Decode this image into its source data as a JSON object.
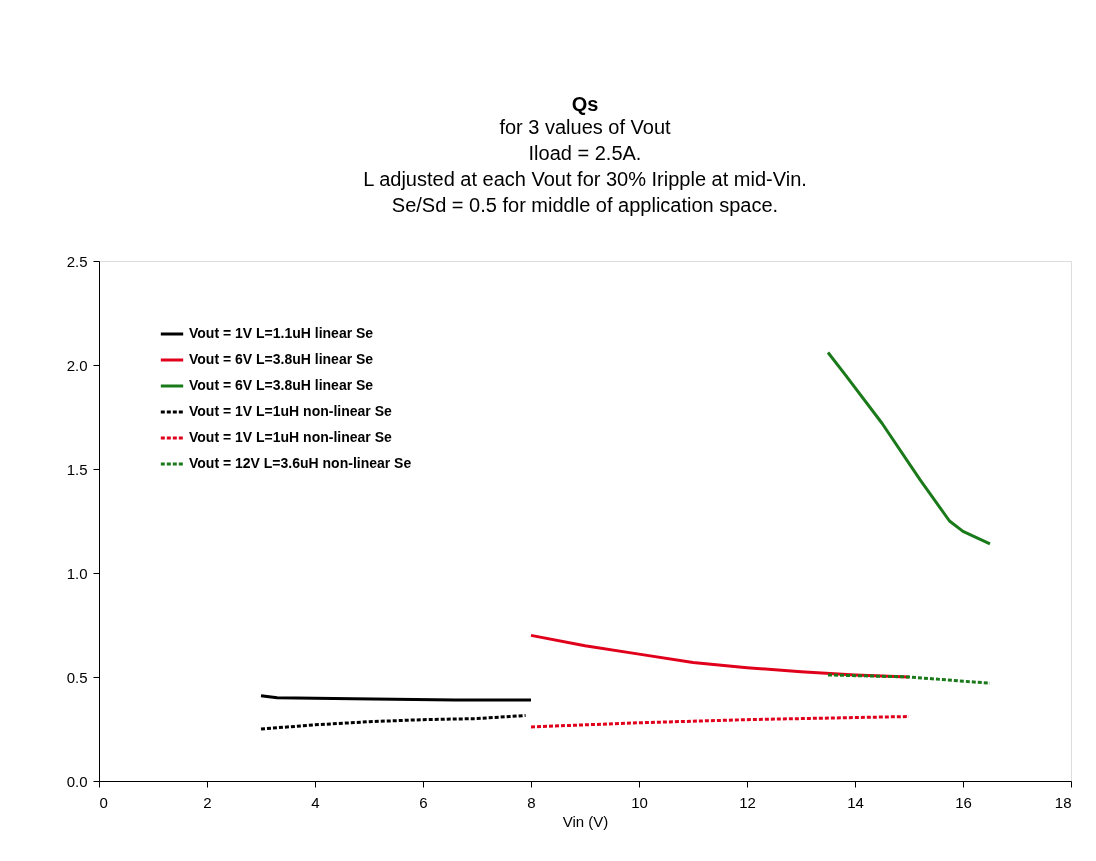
{
  "chart_data": {
    "type": "line",
    "title": "Qs",
    "subtitle": [
      "for 3 values of Vout",
      "Iload = 2.5A.",
      "L adjusted at each Vout for 30% Iripple at mid-Vin.",
      "Se/Sd = 0.5 for middle of application space."
    ],
    "xlabel": "Vin (V)",
    "xlim": [
      0,
      18
    ],
    "xticks": [
      0,
      2,
      4,
      6,
      8,
      10,
      12,
      14,
      16,
      18
    ],
    "ylim": [
      0,
      2.5
    ],
    "yticks": [
      {
        "value": 0,
        "label": "0.0"
      },
      {
        "value": 0.5,
        "label": "0.5"
      },
      {
        "value": 1,
        "label": "1.0"
      },
      {
        "value": 1.5,
        "label": "1.5"
      },
      {
        "value": 2,
        "label": "2.0"
      },
      {
        "value": 2.5,
        "label": "2.5"
      }
    ],
    "grid": false,
    "legend": "top left",
    "marker": "none",
    "series": [
      {
        "name": "Vout = 1V L=1.1uH linear Se",
        "color": "#000000",
        "line_style": "solid",
        "x": [
          3,
          3.3,
          4.7,
          6.6,
          8
        ],
        "values": [
          0.41,
          0.4,
          0.395,
          0.39,
          0.39
        ]
      },
      {
        "name": "Vout = 6V L=3.8uH linear Se",
        "color": "#e0001b",
        "line_style": "solid",
        "x": [
          8,
          9,
          10,
          11,
          12,
          13,
          14,
          15
        ],
        "values": [
          0.7,
          0.65,
          0.61,
          0.57,
          0.545,
          0.525,
          0.51,
          0.5
        ]
      },
      {
        "name": "Vout = 6V L=3.8uH linear Se",
        "color": "#1a7a1a",
        "line_style": "solid",
        "x": [
          13.5,
          13.8,
          14.5,
          15.2,
          15.75,
          16,
          16.5
        ],
        "values": [
          2.06,
          1.96,
          1.72,
          1.45,
          1.25,
          1.2,
          1.14
        ]
      },
      {
        "name": "Vout = 1V L=1uH non-linear Se",
        "color": "#000000",
        "line_style": "dashed",
        "x": [
          3,
          4,
          5,
          6,
          7,
          7.9
        ],
        "values": [
          0.25,
          0.27,
          0.285,
          0.295,
          0.3,
          0.315
        ]
      },
      {
        "name": "Vout = 1V L=1uH non-linear Se",
        "color": "#e0001b",
        "line_style": "dashed",
        "x": [
          8,
          10,
          12,
          14,
          15
        ],
        "values": [
          0.26,
          0.28,
          0.295,
          0.305,
          0.31
        ]
      },
      {
        "name": "Vout = 12V L=3.6uH non-linear Se",
        "color": "#1a7a1a",
        "line_style": "dashed",
        "x": [
          13.5,
          15,
          16.5
        ],
        "values": [
          0.51,
          0.5,
          0.47
        ]
      }
    ]
  }
}
